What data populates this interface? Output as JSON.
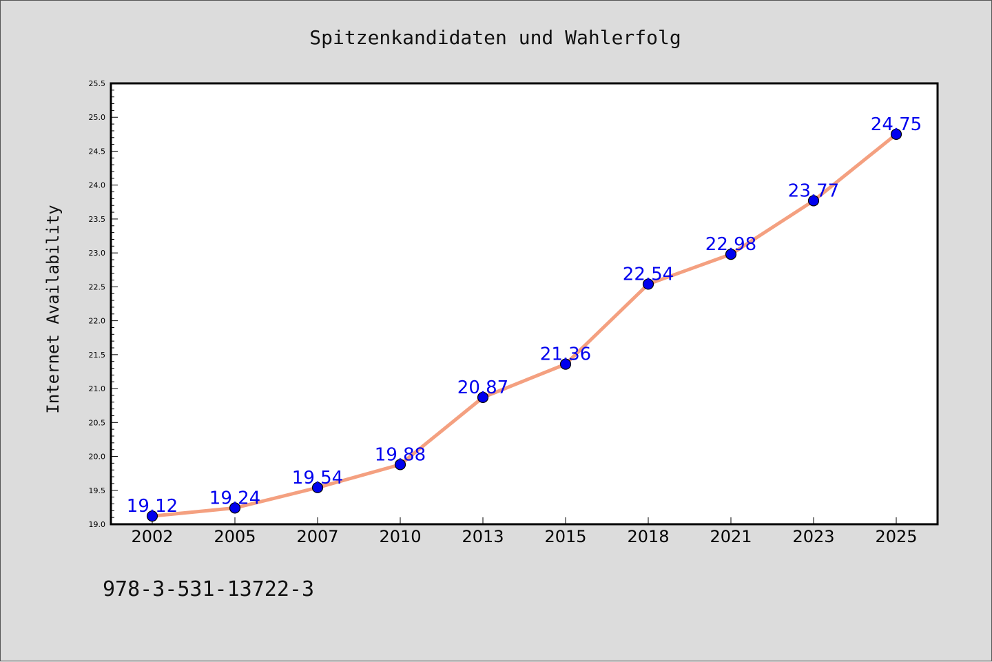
{
  "chart_data": {
    "type": "line",
    "title": "Spitzenkandidaten und Wahlerfolg",
    "xlabel": "",
    "ylabel": "Internet Availability",
    "categories": [
      "2002",
      "2005",
      "2007",
      "2010",
      "2013",
      "2015",
      "2018",
      "2021",
      "2023",
      "2025"
    ],
    "series": [
      {
        "values": [
          19.12,
          19.24,
          19.54,
          19.88,
          20.87,
          21.36,
          22.54,
          22.98,
          23.77,
          24.75
        ],
        "labels": [
          "19.12",
          "19.24",
          "19.54",
          "19.88",
          "20.87",
          "21.36",
          "22.54",
          "22.98",
          "23.77",
          "24.75"
        ]
      }
    ],
    "ylim": [
      19.0,
      25.5
    ],
    "yticks": [
      "19.0",
      "19.5",
      "20.0",
      "20.5",
      "21.0",
      "21.5",
      "22.0",
      "22.5",
      "23.0",
      "23.5",
      "24.0",
      "24.5",
      "25.0",
      "25.5"
    ],
    "grid": false,
    "colors": {
      "line": "#f4a080",
      "marker": "#0000ee",
      "data_label": "#0000ee",
      "background": "#dcdcdc",
      "plot_area": "#ffffff"
    }
  },
  "footnote": "978-3-531-13722-3"
}
